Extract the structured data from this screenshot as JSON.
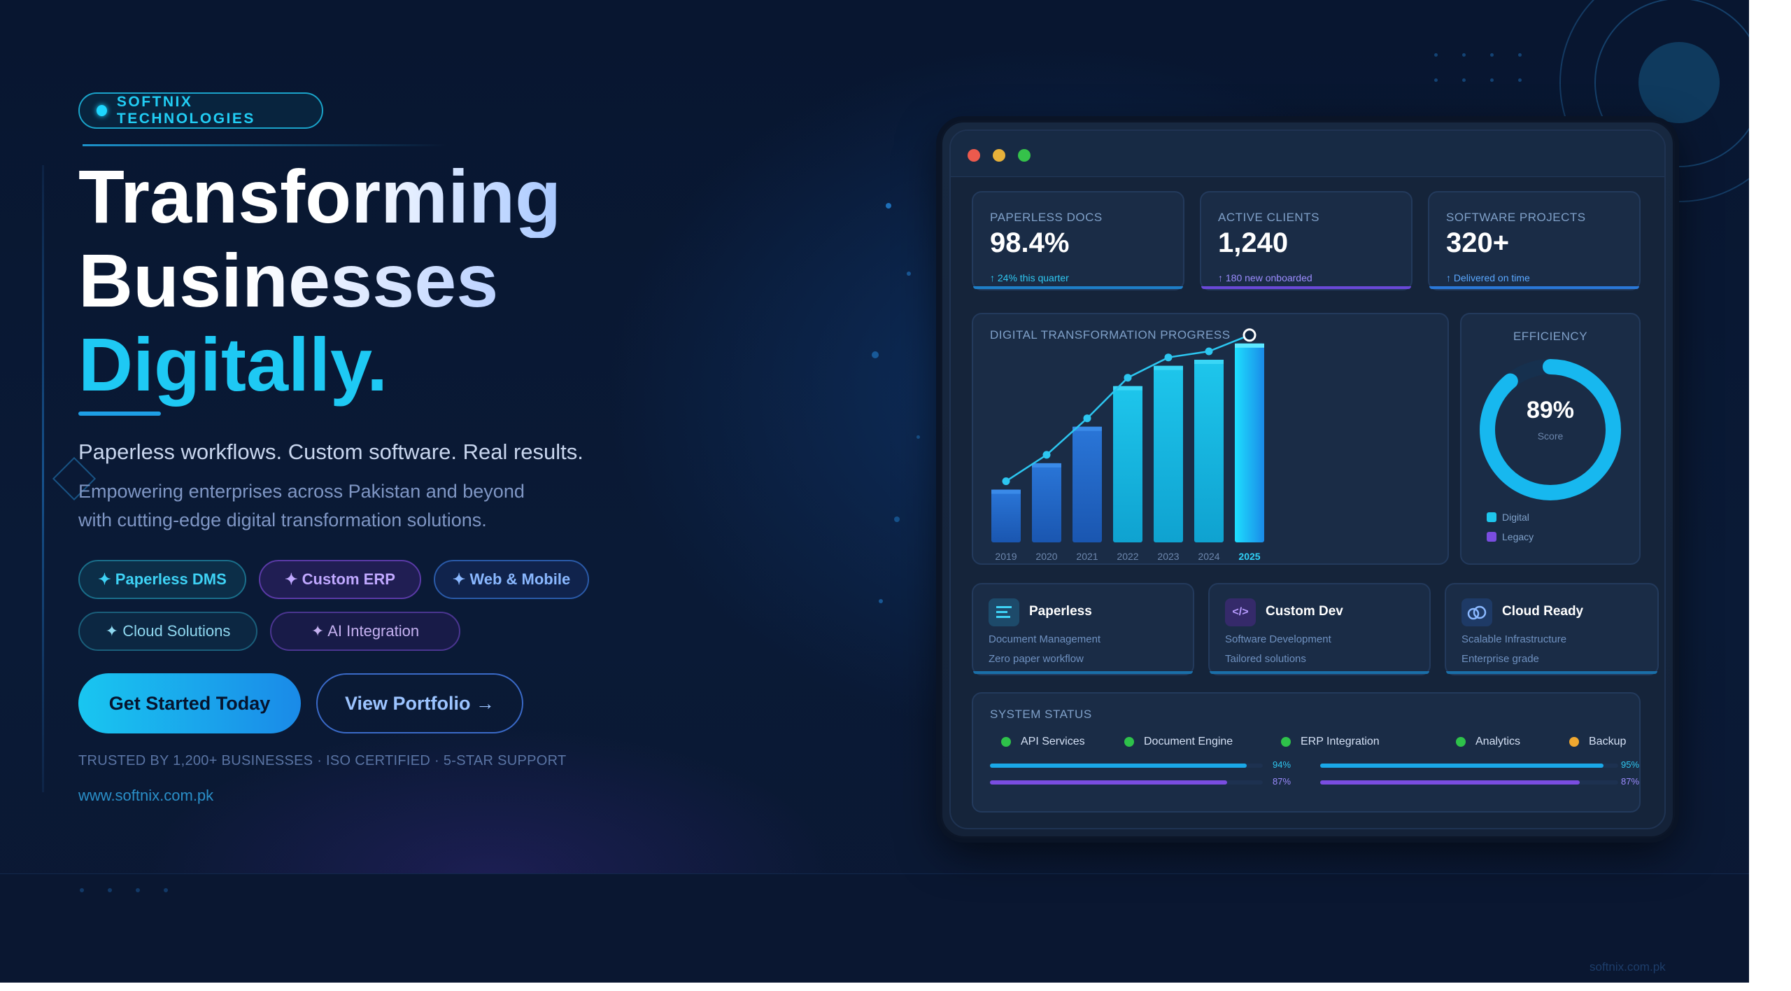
{
  "brand": {
    "name": "SOFTNIX TECHNOLOGIES"
  },
  "hero": {
    "line1": "Transforming",
    "line2": "Businesses",
    "line3": "Digitally.",
    "lead": "Paperless workflows. Custom software. Real results.",
    "sub_line1": "Empowering enterprises across Pakistan and beyond",
    "sub_line2": "with cutting-edge digital transformation solutions."
  },
  "chips": [
    {
      "label": "✦ Paperless DMS"
    },
    {
      "label": "✦ Custom ERP"
    },
    {
      "label": "✦ Web & Mobile"
    },
    {
      "label": "✦ Cloud Solutions"
    },
    {
      "label": "✦ AI Integration"
    }
  ],
  "cta": {
    "primary": "Get Started Today",
    "secondary": "View Portfolio →"
  },
  "trust": "TRUSTED BY 1,200+ BUSINESSES · ISO CERTIFIED · 5-STAR SUPPORT",
  "url": "www.softnix.com.pk",
  "corner_url": "softnix.com.pk",
  "colors": {
    "accent_cyan": "#1ec9f4",
    "accent_blue": "#1a8ae8",
    "accent_purple": "#7a4de0",
    "ok_green": "#2ec24a",
    "warn_orange": "#f0a830"
  },
  "dashboard": {
    "stats": [
      {
        "label": "PAPERLESS DOCS",
        "value": "98.4%",
        "delta": "↑ 24% this quarter"
      },
      {
        "label": "ACTIVE CLIENTS",
        "value": "1,240",
        "delta": "↑ 180 new onboarded"
      },
      {
        "label": "SOFTWARE PROJECTS",
        "value": "320+",
        "delta": "↑ Delivered on time"
      }
    ],
    "efficiency": {
      "title": "EFFICIENCY",
      "value": "89%",
      "caption": "Score",
      "fraction": 0.89,
      "legend": [
        "Digital",
        "Legacy"
      ]
    },
    "features": [
      {
        "icon": "document-lines-icon",
        "title": "Paperless",
        "line1": "Document Management",
        "line2": "Zero paper workflow"
      },
      {
        "icon": "code-icon",
        "title": "Custom Dev",
        "line1": "Software Development",
        "line2": "Tailored solutions"
      },
      {
        "icon": "cloud-icon",
        "title": "Cloud Ready",
        "line1": "Scalable Infrastructure",
        "line2": "Enterprise grade"
      }
    ],
    "status": {
      "title": "SYSTEM STATUS",
      "services": [
        {
          "name": "API Services",
          "color": "#2ec24a"
        },
        {
          "name": "Document Engine",
          "color": "#2ec24a"
        },
        {
          "name": "ERP Integration",
          "color": "#2ec24a"
        },
        {
          "name": "Analytics",
          "color": "#2ec24a"
        },
        {
          "name": "Backup",
          "color": "#f0a830"
        }
      ],
      "bars": [
        {
          "label": "94%",
          "value": 94
        },
        {
          "label": "95%",
          "value": 95
        },
        {
          "label": "87%",
          "value": 87
        },
        {
          "label": "87%",
          "value": 87
        }
      ]
    }
  },
  "chart_data": {
    "type": "bar",
    "title": "DIGITAL TRANSFORMATION PROGRESS",
    "categories": [
      "2019",
      "2020",
      "2021",
      "2022",
      "2023",
      "2024",
      "2025"
    ],
    "values": [
      26,
      39,
      57,
      77,
      87,
      90,
      98
    ],
    "ylim": [
      0,
      100
    ],
    "overlay": "line",
    "highlight": "2025",
    "grid": false
  }
}
